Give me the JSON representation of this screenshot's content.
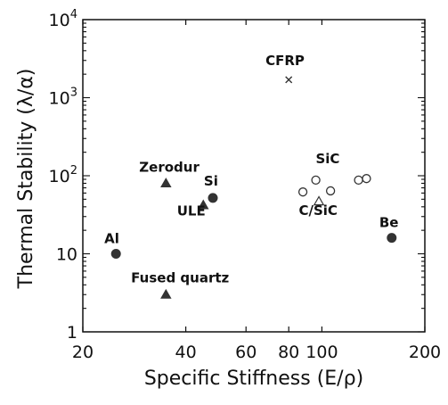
{
  "chart_data": {
    "type": "scatter",
    "title": "",
    "xlabel": "Specific Stiffness (E/ρ)",
    "ylabel": "Thermal Stability (λ/α)",
    "xscale": "log",
    "yscale": "log",
    "xlim": [
      20,
      200
    ],
    "ylim": [
      1,
      10000
    ],
    "xticks": [
      {
        "value": 20,
        "label": "20"
      },
      {
        "value": 40,
        "label": "40"
      },
      {
        "value": 60,
        "label": "60"
      },
      {
        "value": 80,
        "label": "80"
      },
      {
        "value": 100,
        "label": "100"
      },
      {
        "value": 200,
        "label": "200"
      }
    ],
    "yticks": [
      {
        "value": 1,
        "label": "1"
      },
      {
        "value": 10,
        "label": "10"
      },
      {
        "value": 100,
        "label": "10",
        "sup": "2"
      },
      {
        "value": 1000,
        "label": "10",
        "sup": "3"
      },
      {
        "value": 10000,
        "label": "10",
        "sup": "4"
      }
    ],
    "grid": false,
    "legend": "none",
    "marker_color": "#333333",
    "points": [
      {
        "x": 25,
        "y": 10,
        "marker": "filled-circle"
      },
      {
        "x": 35,
        "y": 3,
        "marker": "filled-triangle"
      },
      {
        "x": 35,
        "y": 80,
        "marker": "filled-triangle"
      },
      {
        "x": 45,
        "y": 42,
        "marker": "filled-triangle"
      },
      {
        "x": 48,
        "y": 52,
        "marker": "filled-circle"
      },
      {
        "x": 80,
        "y": 1700,
        "marker": "x"
      },
      {
        "x": 88,
        "y": 62,
        "marker": "open-circle"
      },
      {
        "x": 96,
        "y": 88,
        "marker": "open-circle"
      },
      {
        "x": 98,
        "y": 47,
        "marker": "open-triangle"
      },
      {
        "x": 106,
        "y": 64,
        "marker": "open-circle"
      },
      {
        "x": 128,
        "y": 88,
        "marker": "open-circle"
      },
      {
        "x": 135,
        "y": 92,
        "marker": "open-circle"
      },
      {
        "x": 160,
        "y": 16,
        "marker": "filled-circle"
      }
    ],
    "annotations": [
      {
        "text": "Al",
        "x": 24.3,
        "y": 13.8
      },
      {
        "text": "Fused quartz",
        "x": 38.5,
        "y": 4.3
      },
      {
        "text": "Zerodur",
        "x": 35.8,
        "y": 112
      },
      {
        "text": "Si",
        "x": 47.4,
        "y": 75
      },
      {
        "text": "ULE",
        "x": 41.5,
        "y": 31
      },
      {
        "text": "CFRP",
        "x": 78,
        "y": 2600
      },
      {
        "text": "SiC",
        "x": 104,
        "y": 145
      },
      {
        "text": "C/SiC",
        "x": 97.5,
        "y": 31.5
      },
      {
        "text": "Be",
        "x": 157,
        "y": 22
      }
    ]
  }
}
